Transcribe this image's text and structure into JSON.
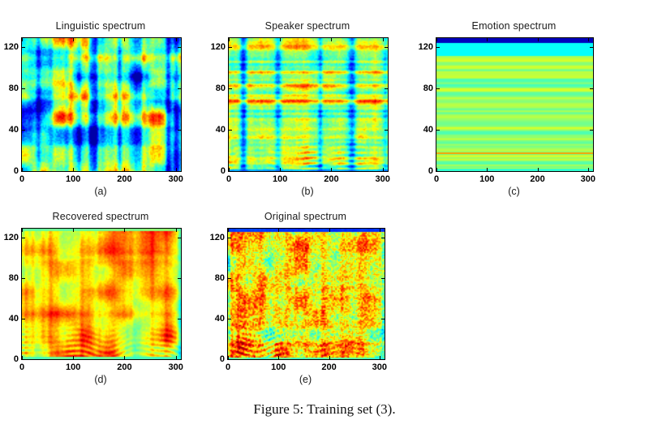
{
  "figure": {
    "caption": "Figure 5: Training set (3).",
    "background_color": "#ffffff",
    "axis_color": "#000000",
    "text_color": "#1a1a1a"
  },
  "chart_data": [
    {
      "type": "heatmap",
      "title": "Linguistic spectrum",
      "label": "(a)",
      "xlim": [
        0,
        310
      ],
      "ylim": [
        0,
        129
      ],
      "xticks": [
        0,
        100,
        200,
        300
      ],
      "yticks": [
        0,
        40,
        80,
        120
      ],
      "colormap": "jet",
      "description": "Mel-spectrogram-like map, cyan background with strong vertical blue streaks and red/orange blobs",
      "pattern": {
        "seed": 11,
        "base": 0.44,
        "contrast": 1.3,
        "col": {
          "amp": 0.3,
          "scale": 15
        },
        "row": {
          "amp": 0.12,
          "scale": 8
        },
        "blob": {
          "amp": 0.22,
          "scale": 24
        },
        "fine": 0.04,
        "rows": [],
        "streaks": [],
        "ripple": null,
        "bands": [],
        "vclamp": [
          0.04,
          0.96
        ]
      }
    },
    {
      "type": "heatmap",
      "title": "Speaker spectrum",
      "label": "(b)",
      "xlim": [
        0,
        310
      ],
      "ylim": [
        0,
        129
      ],
      "xticks": [
        0,
        100,
        200,
        300
      ],
      "yticks": [
        0,
        40,
        80,
        120
      ],
      "colormap": "jet",
      "description": "Green/yellow field with thin orange horizontal bands, narrow dark-blue vertical streaks and harmonic arcs near the bottom",
      "pattern": {
        "seed": 22,
        "base": 0.53,
        "contrast": 1.0,
        "col": {
          "amp": 0.07,
          "scale": 12
        },
        "row": {
          "amp": 0.16,
          "scale": 3.2
        },
        "blob": {
          "amp": 0.07,
          "scale": 20
        },
        "fine": 0.05,
        "rows": [
          {
            "y": 124,
            "w": 2.5,
            "dv": 0.2
          },
          {
            "y": 119,
            "w": 2,
            "dv": 0.12
          },
          {
            "y": 95,
            "w": 2.5,
            "dv": 0.13
          },
          {
            "y": 82,
            "w": 2,
            "dv": 0.2
          },
          {
            "y": 67,
            "w": 1.8,
            "dv": 0.16
          },
          {
            "y": 48,
            "w": 1.6,
            "dv": 0.1
          },
          {
            "y": 32,
            "w": 1.8,
            "dv": 0.18
          },
          {
            "y": 12,
            "w": 1.6,
            "dv": 0.1
          }
        ],
        "streaks": [
          {
            "x": 28,
            "w": 5,
            "dv": -0.3
          },
          {
            "x": 95,
            "w": 5,
            "dv": -0.28
          },
          {
            "x": 178,
            "w": 4,
            "dv": -0.2
          },
          {
            "x": 240,
            "w": 6,
            "dv": -0.3
          },
          {
            "x": 305,
            "w": 4,
            "dv": -0.15
          }
        ],
        "ripple": {
          "amp": 0.13,
          "h": 42,
          "freq": 1.15
        },
        "bands": [
          {
            "from": 0,
            "to": 1.5,
            "v": 0.25,
            "mix": 0.7
          }
        ],
        "vclamp": [
          0.05,
          0.95
        ]
      }
    },
    {
      "type": "heatmap",
      "title": "Emotion spectrum",
      "label": "(c)",
      "xlim": [
        0,
        310
      ],
      "ylim": [
        0,
        129
      ],
      "xticks": [
        0,
        100,
        200,
        300
      ],
      "yticks": [
        0,
        40,
        80,
        120
      ],
      "colormap": "jet",
      "description": "Purely horizontal stripes: dark-blue band at very top, cyan band below it, alternating green/cyan stripes, one orange stripe near y=17",
      "pattern": {
        "seed": 33,
        "base": 0.52,
        "contrast": 1.0,
        "col": {
          "amp": 0,
          "scale": 10
        },
        "row": {
          "amp": 0.085,
          "scale": 2.3
        },
        "blob": {
          "amp": 0,
          "scale": 20
        },
        "fine": 0,
        "rows": [],
        "streaks": [],
        "ripple": null,
        "bands": [
          {
            "from": 123.5,
            "to": 129,
            "v": 0.06,
            "mix": 1
          },
          {
            "from": 111,
            "to": 123.5,
            "v": 0.38,
            "mix": 1
          },
          {
            "from": 16,
            "to": 18,
            "v": 0.72,
            "mix": 1
          },
          {
            "from": 0,
            "to": 1.8,
            "v": 0.42,
            "mix": 1
          }
        ],
        "vclamp": [
          0.4,
          0.63
        ]
      }
    },
    {
      "type": "heatmap",
      "title": "Recovered spectrum",
      "label": "(d)",
      "xlim": [
        0,
        310
      ],
      "ylim": [
        0,
        129
      ],
      "xticks": [
        0,
        100,
        200,
        300
      ],
      "yticks": [
        0,
        40,
        80,
        120
      ],
      "colormap": "jet",
      "description": "Warm yellow/orange field with smooth dark-red blobs, harmonic ripples near the bottom, cool cyan fringe at edges",
      "pattern": {
        "seed": 44,
        "base": 0.67,
        "contrast": 1.05,
        "col": {
          "amp": 0.11,
          "scale": 13
        },
        "row": {
          "amp": 0.05,
          "scale": 7
        },
        "blob": {
          "amp": 0.15,
          "scale": 26
        },
        "fine": 0.03,
        "rows": [],
        "streaks": [
          {
            "x": 2,
            "w": 2.5,
            "dv": -0.12
          },
          {
            "x": 308,
            "w": 3,
            "dv": -0.2
          }
        ],
        "ripple": {
          "amp": 0.12,
          "h": 40,
          "freq": 1.2
        },
        "bands": [
          {
            "from": 126.5,
            "to": 129,
            "v": 0.45,
            "mix": 0.85
          },
          {
            "from": 0,
            "to": 2,
            "v": 0.42,
            "mix": 0.85
          }
        ],
        "vclamp": [
          0.3,
          0.97
        ]
      }
    },
    {
      "type": "heatmap",
      "title": "Original spectrum",
      "label": "(e)",
      "xlim": [
        0,
        310
      ],
      "ylim": [
        0,
        129
      ],
      "xticks": [
        0,
        100,
        200,
        300
      ],
      "yticks": [
        0,
        40,
        80,
        120
      ],
      "colormap": "jet",
      "description": "Like the recovered spectrum but with fine granular noise, dark-blue top edge and stronger harmonic arcs near the bottom",
      "pattern": {
        "seed": 55,
        "base": 0.66,
        "contrast": 1.05,
        "col": {
          "amp": 0.12,
          "scale": 12
        },
        "row": {
          "amp": 0.05,
          "scale": 5
        },
        "blob": {
          "amp": 0.14,
          "scale": 22
        },
        "fine": 0.13,
        "rows": [
          {
            "y": 15,
            "w": 2,
            "dv": 0.12
          },
          {
            "y": 32,
            "w": 2,
            "dv": 0.1
          }
        ],
        "streaks": [
          {
            "x": 2,
            "w": 2,
            "dv": -0.15
          },
          {
            "x": 307,
            "w": 3,
            "dv": -0.18
          }
        ],
        "ripple": {
          "amp": 0.14,
          "h": 45,
          "freq": 1.2
        },
        "bands": [
          {
            "from": 125,
            "to": 129,
            "v": 0.12,
            "mix": 0.9
          },
          {
            "from": 0,
            "to": 1.5,
            "v": 0.4,
            "mix": 0.8
          }
        ],
        "vclamp": [
          0.03,
          0.97
        ]
      }
    }
  ]
}
